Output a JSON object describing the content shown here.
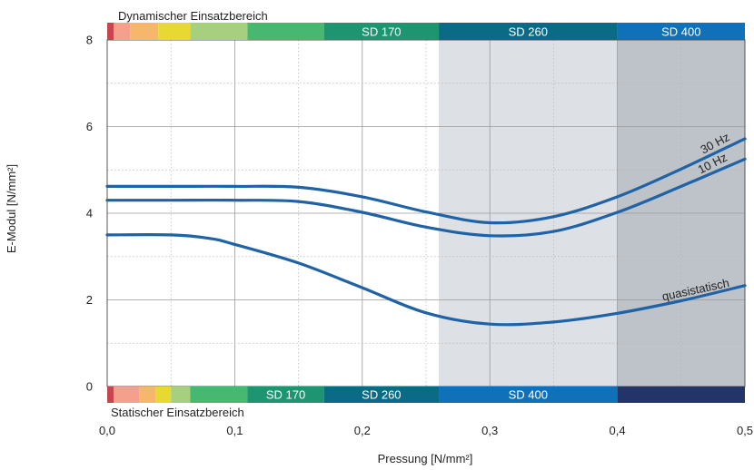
{
  "chart_data": {
    "type": "line",
    "xlabel": "Pressung [N/mm²]",
    "ylabel": "E-Modul [N/mm²]",
    "xlim": [
      0,
      0.5
    ],
    "ylim": [
      0,
      8
    ],
    "x_ticks": [
      "0,0",
      "0,1",
      "0,2",
      "0,3",
      "0,4",
      "0,5"
    ],
    "y_ticks": [
      "0",
      "2",
      "4",
      "6",
      "8"
    ],
    "grid": true,
    "top_band_label": "Dynamischer Einsatzbereich",
    "bottom_band_label": "Statischer Einsatzbereich",
    "top_band": [
      {
        "from": 0.0,
        "to": 0.005,
        "color": "#c8454e",
        "label": ""
      },
      {
        "from": 0.005,
        "to": 0.018,
        "color": "#f4a08c",
        "label": ""
      },
      {
        "from": 0.018,
        "to": 0.04,
        "color": "#f6b76c",
        "label": ""
      },
      {
        "from": 0.04,
        "to": 0.065,
        "color": "#e8d832",
        "label": ""
      },
      {
        "from": 0.065,
        "to": 0.11,
        "color": "#a6d07e",
        "label": ""
      },
      {
        "from": 0.11,
        "to": 0.17,
        "color": "#48b870",
        "label": ""
      },
      {
        "from": 0.17,
        "to": 0.26,
        "color": "#1e9470",
        "label": "SD 170"
      },
      {
        "from": 0.26,
        "to": 0.4,
        "color": "#0b6b86",
        "label": "SD 260"
      },
      {
        "from": 0.4,
        "to": 0.5,
        "color": "#1070b8",
        "label": "SD 400"
      }
    ],
    "bottom_band": [
      {
        "from": 0.0,
        "to": 0.005,
        "color": "#c8454e",
        "label": ""
      },
      {
        "from": 0.005,
        "to": 0.025,
        "color": "#f4a08c",
        "label": ""
      },
      {
        "from": 0.025,
        "to": 0.038,
        "color": "#f6b76c",
        "label": ""
      },
      {
        "from": 0.038,
        "to": 0.05,
        "color": "#e8d832",
        "label": ""
      },
      {
        "from": 0.05,
        "to": 0.065,
        "color": "#a6d07e",
        "label": ""
      },
      {
        "from": 0.065,
        "to": 0.11,
        "color": "#48b870",
        "label": ""
      },
      {
        "from": 0.11,
        "to": 0.17,
        "color": "#1e9470",
        "label": "SD 170"
      },
      {
        "from": 0.17,
        "to": 0.26,
        "color": "#0b6b86",
        "label": "SD 260"
      },
      {
        "from": 0.26,
        "to": 0.4,
        "color": "#1070b8",
        "label": "SD 400"
      },
      {
        "from": 0.4,
        "to": 0.5,
        "color": "#233468",
        "label": ""
      }
    ],
    "shaded_regions": [
      {
        "from": 0.26,
        "to": 0.4,
        "color": "#dde1e5"
      },
      {
        "from": 0.4,
        "to": 0.5,
        "color": "#bec3ca"
      }
    ],
    "series": [
      {
        "name": "30 Hz",
        "color": "#1f62a6",
        "x": [
          0.0,
          0.05,
          0.1,
          0.15,
          0.2,
          0.25,
          0.3,
          0.35,
          0.4,
          0.45,
          0.5
        ],
        "y": [
          4.62,
          4.62,
          4.62,
          4.6,
          4.38,
          4.03,
          3.78,
          3.92,
          4.38,
          5.02,
          5.72
        ]
      },
      {
        "name": "10 Hz",
        "color": "#1f62a6",
        "x": [
          0.0,
          0.05,
          0.1,
          0.15,
          0.2,
          0.25,
          0.3,
          0.35,
          0.4,
          0.45,
          0.5
        ],
        "y": [
          4.3,
          4.3,
          4.3,
          4.27,
          4.02,
          3.68,
          3.48,
          3.58,
          4.02,
          4.62,
          5.25
        ]
      },
      {
        "name": "quasistatisch",
        "color": "#1f62a6",
        "x": [
          0.0,
          0.05,
          0.08,
          0.1,
          0.15,
          0.2,
          0.25,
          0.3,
          0.35,
          0.4,
          0.45,
          0.5
        ],
        "y": [
          3.5,
          3.5,
          3.42,
          3.28,
          2.85,
          2.28,
          1.7,
          1.44,
          1.49,
          1.69,
          1.98,
          2.33
        ]
      }
    ]
  }
}
